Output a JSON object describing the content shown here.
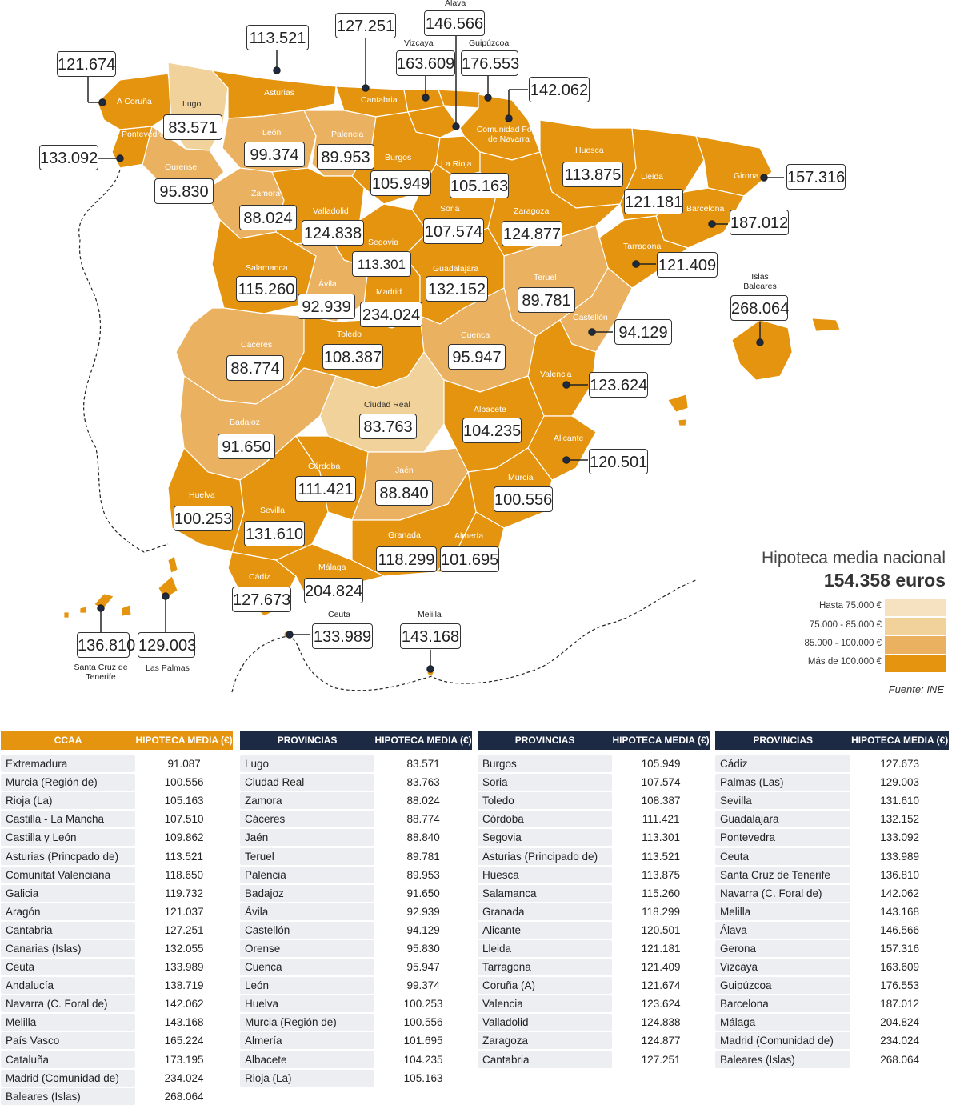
{
  "map": {
    "colors": {
      "hasta_75": "#f6e2c0",
      "r75_85": "#f1d29a",
      "r85_100": "#eab160",
      "mas_100": "#e4940e",
      "navy": "#1d2a44"
    },
    "province_labels": [
      {
        "id": "a-coruna",
        "name": "A Coruña",
        "value": "121.674",
        "tier": "mas_100"
      },
      {
        "id": "lugo",
        "name": "Lugo",
        "value": "83.571",
        "tier": "r75_85"
      },
      {
        "id": "asturias",
        "name": "Asturias",
        "value": "113.521",
        "tier": "mas_100"
      },
      {
        "id": "cantabria",
        "name": "Cantabria",
        "value": "127.251",
        "tier": "mas_100"
      },
      {
        "id": "vizcaya",
        "name": "Vizcaya",
        "value": "163.609",
        "tier": "mas_100"
      },
      {
        "id": "alava",
        "name": "Álava",
        "value": "146.566",
        "tier": "mas_100"
      },
      {
        "id": "guipuzcoa",
        "name": "Guipúzcoa",
        "value": "176.553",
        "tier": "mas_100"
      },
      {
        "id": "navarra",
        "name": "Comunidad Foral de Navarra",
        "value": "142.062",
        "tier": "mas_100"
      },
      {
        "id": "pontevedra",
        "name": "Pontevedra",
        "value": "133.092",
        "tier": "mas_100"
      },
      {
        "id": "ourense",
        "name": "Ourense",
        "value": "95.830",
        "tier": "r85_100"
      },
      {
        "id": "leon",
        "name": "León",
        "value": "99.374",
        "tier": "r85_100"
      },
      {
        "id": "palencia",
        "name": "Palencia",
        "value": "89.953",
        "tier": "r85_100"
      },
      {
        "id": "burgos",
        "name": "Burgos",
        "value": "105.949",
        "tier": "mas_100"
      },
      {
        "id": "la-rioja",
        "name": "La Rioja",
        "value": "105.163",
        "tier": "mas_100"
      },
      {
        "id": "huesca",
        "name": "Huesca",
        "value": "113.875",
        "tier": "mas_100"
      },
      {
        "id": "lleida",
        "name": "Lleida",
        "value": "121.181",
        "tier": "mas_100"
      },
      {
        "id": "girona",
        "name": "Girona",
        "value": "157.316",
        "tier": "mas_100"
      },
      {
        "id": "barcelona",
        "name": "Barcelona",
        "value": "187.012",
        "tier": "mas_100"
      },
      {
        "id": "zamora",
        "name": "Zamora",
        "value": "88.024",
        "tier": "r85_100"
      },
      {
        "id": "valladolid",
        "name": "Valladolid",
        "value": "124.838",
        "tier": "mas_100"
      },
      {
        "id": "soria",
        "name": "Soria",
        "value": "107.574",
        "tier": "mas_100"
      },
      {
        "id": "zaragoza",
        "name": "Zaragoza",
        "value": "124.877",
        "tier": "mas_100"
      },
      {
        "id": "tarragona",
        "name": "Tarragona",
        "value": "121.409",
        "tier": "mas_100"
      },
      {
        "id": "segovia",
        "name": "Segovia",
        "value": "113.301",
        "tier": "mas_100"
      },
      {
        "id": "salamanca",
        "name": "Salamanca",
        "value": "115.260",
        "tier": "mas_100"
      },
      {
        "id": "avila",
        "name": "Ávila",
        "value": "92.939",
        "tier": "r85_100"
      },
      {
        "id": "madrid",
        "name": "Madrid",
        "value": "234.024",
        "tier": "mas_100"
      },
      {
        "id": "guadalajara",
        "name": "Guadalajara",
        "value": "132.152",
        "tier": "mas_100"
      },
      {
        "id": "teruel",
        "name": "Teruel",
        "value": "89.781",
        "tier": "r85_100"
      },
      {
        "id": "castellon",
        "name": "Castellón",
        "value": "94.129",
        "tier": "r85_100"
      },
      {
        "id": "baleares",
        "name": "Islas Baleares",
        "value": "268.064",
        "tier": "mas_100"
      },
      {
        "id": "caceres",
        "name": "Cáceres",
        "value": "88.774",
        "tier": "r85_100"
      },
      {
        "id": "toledo",
        "name": "Toledo",
        "value": "108.387",
        "tier": "mas_100"
      },
      {
        "id": "cuenca",
        "name": "Cuenca",
        "value": "95.947",
        "tier": "r85_100"
      },
      {
        "id": "valencia",
        "name": "Valencia",
        "value": "123.624",
        "tier": "mas_100"
      },
      {
        "id": "ciudad-real",
        "name": "Ciudad Real",
        "value": "83.763",
        "tier": "r75_85"
      },
      {
        "id": "badajoz",
        "name": "Badajoz",
        "value": "91.650",
        "tier": "r85_100"
      },
      {
        "id": "albacete",
        "name": "Albacete",
        "value": "104.235",
        "tier": "mas_100"
      },
      {
        "id": "alicante",
        "name": "Alicante",
        "value": "120.501",
        "tier": "mas_100"
      },
      {
        "id": "cordoba",
        "name": "Córdoba",
        "value": "111.421",
        "tier": "mas_100"
      },
      {
        "id": "jaen",
        "name": "Jaén",
        "value": "88.840",
        "tier": "r85_100"
      },
      {
        "id": "murcia",
        "name": "Murcia",
        "value": "100.556",
        "tier": "mas_100"
      },
      {
        "id": "huelva",
        "name": "Huelva",
        "value": "100.253",
        "tier": "mas_100"
      },
      {
        "id": "sevilla",
        "name": "Sevilla",
        "value": "131.610",
        "tier": "mas_100"
      },
      {
        "id": "granada",
        "name": "Granada",
        "value": "118.299",
        "tier": "mas_100"
      },
      {
        "id": "almeria",
        "name": "Almería",
        "value": "101.695",
        "tier": "mas_100"
      },
      {
        "id": "cadiz",
        "name": "Cádiz",
        "value": "127.673",
        "tier": "mas_100"
      },
      {
        "id": "malaga",
        "name": "Málaga",
        "value": "204.824",
        "tier": "mas_100"
      },
      {
        "id": "ceuta",
        "name": "Ceuta",
        "value": "133.989",
        "tier": "mas_100"
      },
      {
        "id": "melilla",
        "name": "Melilla",
        "value": "143.168",
        "tier": "mas_100"
      },
      {
        "id": "santa-cruz",
        "name": "Santa Cruz de Tenerife",
        "value": "136.810",
        "tier": "mas_100"
      },
      {
        "id": "las-palmas",
        "name": "Las Palmas",
        "value": "129.003",
        "tier": "mas_100"
      }
    ],
    "national": {
      "title": "Hipoteca media nacional",
      "value": "154.358 euros"
    },
    "legend": [
      {
        "label": "Hasta 75.000 €",
        "tier": "hasta_75"
      },
      {
        "label": "75.000 - 85.000 €",
        "tier": "r75_85"
      },
      {
        "label": "85.000 - 100.000 €",
        "tier": "r85_100"
      },
      {
        "label": "Más de 100.000 €",
        "tier": "mas_100"
      }
    ],
    "source": "Fuente: INE"
  },
  "tables": [
    {
      "id": "ccaa",
      "header": [
        "CCAA",
        "HIPOTECA MEDIA (€)"
      ],
      "style": "orange",
      "rows": [
        [
          "Extremadura",
          "91.087"
        ],
        [
          "Murcia (Región de)",
          "100.556"
        ],
        [
          "Rioja (La)",
          "105.163"
        ],
        [
          "Castilla - La Mancha",
          "107.510"
        ],
        [
          "Castilla y León",
          "109.862"
        ],
        [
          "Asturias (Princpado de)",
          "113.521"
        ],
        [
          "Comunitat Valenciana",
          "118.650"
        ],
        [
          "Galicia",
          "119.732"
        ],
        [
          "Aragón",
          "121.037"
        ],
        [
          "Cantabria",
          "127.251"
        ],
        [
          "Canarias (Islas)",
          "132.055"
        ],
        [
          "Ceuta",
          "133.989"
        ],
        [
          "Andalucía",
          "138.719"
        ],
        [
          "Navarra (C. Foral de)",
          "142.062"
        ],
        [
          "Melilla",
          "143.168"
        ],
        [
          "País Vasco",
          "165.224"
        ],
        [
          "Cataluña",
          "173.195"
        ],
        [
          "Madrid (Comunidad de)",
          "234.024"
        ],
        [
          "Baleares (Islas)",
          "268.064"
        ]
      ]
    },
    {
      "id": "prov1",
      "header": [
        "PROVINCIAS",
        "HIPOTECA MEDIA (€)"
      ],
      "style": "navy",
      "rows": [
        [
          "Lugo",
          "83.571"
        ],
        [
          "Ciudad Real",
          "83.763"
        ],
        [
          "Zamora",
          "88.024"
        ],
        [
          "Cáceres",
          "88.774"
        ],
        [
          "Jaén",
          "88.840"
        ],
        [
          "Teruel",
          "89.781"
        ],
        [
          "Palencia",
          "89.953"
        ],
        [
          "Badajoz",
          "91.650"
        ],
        [
          "Ávila",
          "92.939"
        ],
        [
          "Castellón",
          "94.129"
        ],
        [
          "Orense",
          "95.830"
        ],
        [
          "Cuenca",
          "95.947"
        ],
        [
          "León",
          "99.374"
        ],
        [
          "Huelva",
          "100.253"
        ],
        [
          "Murcia (Región de)",
          "100.556"
        ],
        [
          "Almería",
          "101.695"
        ],
        [
          "Albacete",
          "104.235"
        ],
        [
          "Rioja (La)",
          "105.163"
        ]
      ]
    },
    {
      "id": "prov2",
      "header": [
        "PROVINCIAS",
        "HIPOTECA MEDIA (€)"
      ],
      "style": "navy",
      "rows": [
        [
          "Burgos",
          "105.949"
        ],
        [
          "Soria",
          "107.574"
        ],
        [
          "Toledo",
          "108.387"
        ],
        [
          "Córdoba",
          "111.421"
        ],
        [
          "Segovia",
          "113.301"
        ],
        [
          "Asturias (Principado de)",
          "113.521"
        ],
        [
          "Huesca",
          "113.875"
        ],
        [
          "Salamanca",
          "115.260"
        ],
        [
          "Granada",
          "118.299"
        ],
        [
          "Alicante",
          "120.501"
        ],
        [
          "Lleida",
          "121.181"
        ],
        [
          "Tarragona",
          "121.409"
        ],
        [
          "Coruña (A)",
          "121.674"
        ],
        [
          "Valencia",
          "123.624"
        ],
        [
          "Valladolid",
          "124.838"
        ],
        [
          "Zaragoza",
          "124.877"
        ],
        [
          "Cantabria",
          "127.251"
        ]
      ]
    },
    {
      "id": "prov3",
      "header": [
        "PROVINCIAS",
        "HIPOTECA MEDIA (€)"
      ],
      "style": "navy",
      "rows": [
        [
          "Cádiz",
          "127.673"
        ],
        [
          "Palmas (Las)",
          "129.003"
        ],
        [
          "Sevilla",
          "131.610"
        ],
        [
          "Guadalajara",
          "132.152"
        ],
        [
          "Pontevedra",
          "133.092"
        ],
        [
          "Ceuta",
          "133.989"
        ],
        [
          "Santa Cruz de Tenerife",
          "136.810"
        ],
        [
          "Navarra (C. Foral de)",
          "142.062"
        ],
        [
          "Melilla",
          "143.168"
        ],
        [
          "Álava",
          "146.566"
        ],
        [
          "Gerona",
          "157.316"
        ],
        [
          "Vizcaya",
          "163.609"
        ],
        [
          "Guipúzcoa",
          "176.553"
        ],
        [
          "Barcelona",
          "187.012"
        ],
        [
          "Málaga",
          "204.824"
        ],
        [
          "Madrid (Comunidad de)",
          "234.024"
        ],
        [
          "Baleares (Islas)",
          "268.064"
        ]
      ]
    }
  ]
}
